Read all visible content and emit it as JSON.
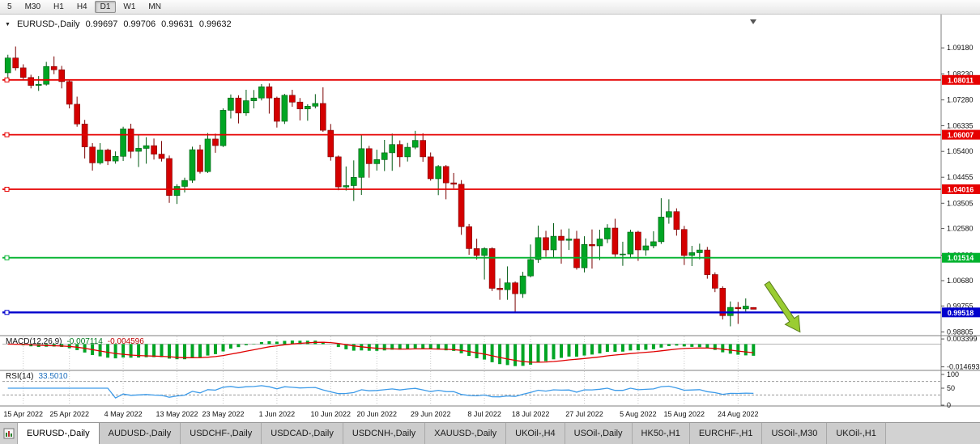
{
  "toolbar": {
    "buttons": [
      {
        "label": "5",
        "selected": false
      },
      {
        "label": "M30",
        "selected": false
      },
      {
        "label": "H1",
        "selected": false
      },
      {
        "label": "H4",
        "selected": false
      },
      {
        "label": "D1",
        "selected": true
      },
      {
        "label": "W1",
        "selected": false
      },
      {
        "label": "MN",
        "selected": false
      }
    ]
  },
  "header": {
    "symbol": "EURUSD-,Daily",
    "open": "0.99697",
    "high": "0.99706",
    "low": "0.99631",
    "close": "0.99632"
  },
  "indicators": {
    "macd": {
      "label": "MACD(12,26,9)",
      "value_main": "-0.007114",
      "value_signal": "-0.004596",
      "axis": [
        {
          "value": 0.003399,
          "label": "0.003399"
        },
        {
          "value": -0.014693,
          "label": "-0.014693"
        }
      ],
      "histogram_color": "#00a524",
      "signal_color": "#e00000"
    },
    "rsi": {
      "label": "RSI(14)",
      "value": "33.5010",
      "line_color": "#3d9be9",
      "axis": [
        {
          "value": 100,
          "label": "100"
        },
        {
          "value": 50,
          "label": "50"
        },
        {
          "value": 0,
          "label": "0"
        }
      ],
      "levels": [
        70,
        30
      ]
    }
  },
  "price_axis": {
    "ticks": [
      {
        "value": 1.0918,
        "label": "1.09180"
      },
      {
        "value": 1.0823,
        "label": "1.08230"
      },
      {
        "value": 1.0728,
        "label": "1.07280"
      },
      {
        "value": 1.06335,
        "label": "1.06335"
      },
      {
        "value": 1.054,
        "label": "1.05400"
      },
      {
        "value": 1.04455,
        "label": "1.04455"
      },
      {
        "value": 1.03505,
        "label": "1.03505"
      },
      {
        "value": 1.0258,
        "label": "1.02580"
      },
      {
        "value": 1.0161,
        "label": "1.01610"
      },
      {
        "value": 1.0068,
        "label": "1.00680"
      },
      {
        "value": 0.99755,
        "label": "0.99755"
      },
      {
        "value": 0.98805,
        "label": "0.98805"
      }
    ]
  },
  "sr_lines": [
    {
      "value": 1.08011,
      "label": "1.08011",
      "color": "#e60000",
      "width": 1.8
    },
    {
      "value": 1.06007,
      "label": "1.06007",
      "color": "#e60000",
      "width": 1.8
    },
    {
      "value": 1.04016,
      "label": "1.04016",
      "color": "#e60000",
      "width": 1.8
    },
    {
      "value": 1.01514,
      "label": "1.01514",
      "color": "#00b22d",
      "width": 1.8
    },
    {
      "value": 0.99518,
      "label": "0.99518",
      "color": "#0000cd",
      "width": 2.4
    }
  ],
  "chart_data": {
    "type": "candlestick",
    "title": "EURUSD-,Daily",
    "symbol": "EURUSD",
    "timeframe": "Daily",
    "ylim": [
      0.987,
      1.0957
    ],
    "up_color": "#00a524",
    "up_border": "#005a12",
    "down_color": "#d40000",
    "down_border": "#7a0000",
    "x_ticks": [
      {
        "i": 2,
        "label": "15 Apr 2022"
      },
      {
        "i": 8,
        "label": "25 Apr 2022"
      },
      {
        "i": 15,
        "label": "4 May 2022"
      },
      {
        "i": 22,
        "label": "13 May 2022"
      },
      {
        "i": 28,
        "label": "23 May 2022"
      },
      {
        "i": 35,
        "label": "1 Jun 2022"
      },
      {
        "i": 42,
        "label": "10 Jun 2022"
      },
      {
        "i": 48,
        "label": "20 Jun 2022"
      },
      {
        "i": 55,
        "label": "29 Jun 2022"
      },
      {
        "i": 62,
        "label": "8 Jul 2022"
      },
      {
        "i": 68,
        "label": "18 Jul 2022"
      },
      {
        "i": 75,
        "label": "27 Jul 2022"
      },
      {
        "i": 82,
        "label": "5 Aug 2022"
      },
      {
        "i": 88,
        "label": "15 Aug 2022"
      },
      {
        "i": 95,
        "label": "24 Aug 2022"
      }
    ],
    "candles": [
      [
        1.0827,
        1.0893,
        1.0808,
        1.0881
      ],
      [
        1.0881,
        1.0923,
        1.0835,
        1.0845
      ],
      [
        1.0845,
        1.0858,
        1.0802,
        1.081
      ],
      [
        1.081,
        1.082,
        1.077,
        1.0781
      ],
      [
        1.0781,
        1.0815,
        1.0761,
        1.0785
      ],
      [
        1.0785,
        1.0867,
        1.078,
        1.085
      ],
      [
        1.085,
        1.0887,
        1.0822,
        1.0838
      ],
      [
        1.0838,
        1.0852,
        1.077,
        1.0795
      ],
      [
        1.0795,
        1.08,
        1.0697,
        1.0712
      ],
      [
        1.0712,
        1.074,
        1.063,
        1.064
      ],
      [
        1.064,
        1.0655,
        1.0514,
        1.0556
      ],
      [
        1.0556,
        1.057,
        1.047,
        1.0498
      ],
      [
        1.0498,
        1.057,
        1.0492,
        1.0545
      ],
      [
        1.0545,
        1.055,
        1.049,
        1.0505
      ],
      [
        1.0505,
        1.054,
        1.0495,
        1.0522
      ],
      [
        1.0522,
        1.063,
        1.0505,
        1.0622
      ],
      [
        1.0622,
        1.0641,
        1.0515,
        1.054
      ],
      [
        1.054,
        1.0599,
        1.0483,
        1.0551
      ],
      [
        1.0551,
        1.0592,
        1.0495,
        1.0561
      ],
      [
        1.0561,
        1.0587,
        1.051,
        1.053
      ],
      [
        1.053,
        1.0578,
        1.0503,
        1.0514
      ],
      [
        1.0514,
        1.0525,
        1.0352,
        1.0379
      ],
      [
        1.0379,
        1.042,
        1.0348,
        1.0412
      ],
      [
        1.0412,
        1.0444,
        1.039,
        1.0434
      ],
      [
        1.0434,
        1.0557,
        1.0425,
        1.0546
      ],
      [
        1.0546,
        1.0564,
        1.0459,
        1.0466
      ],
      [
        1.0466,
        1.0607,
        1.0461,
        1.0585
      ],
      [
        1.0585,
        1.0605,
        1.0535,
        1.0561
      ],
      [
        1.0561,
        1.0697,
        1.0556,
        1.069
      ],
      [
        1.069,
        1.0748,
        1.066,
        1.0735
      ],
      [
        1.0735,
        1.0745,
        1.0642,
        1.068
      ],
      [
        1.068,
        1.0765,
        1.067,
        1.0725
      ],
      [
        1.0725,
        1.0764,
        1.0697,
        1.0735
      ],
      [
        1.0735,
        1.0786,
        1.0726,
        1.0776
      ],
      [
        1.0776,
        1.0788,
        1.0678,
        1.0735
      ],
      [
        1.0735,
        1.074,
        1.0627,
        1.065
      ],
      [
        1.065,
        1.075,
        1.064,
        1.0745
      ],
      [
        1.0745,
        1.0765,
        1.0703,
        1.072
      ],
      [
        1.072,
        1.0735,
        1.0653,
        1.0695
      ],
      [
        1.0695,
        1.0712,
        1.0652,
        1.0705
      ],
      [
        1.0705,
        1.0749,
        1.0697,
        1.0715
      ],
      [
        1.0715,
        1.0774,
        1.0611,
        1.0617
      ],
      [
        1.0617,
        1.064,
        1.0506,
        1.052
      ],
      [
        1.052,
        1.0525,
        1.0398,
        1.041
      ],
      [
        1.041,
        1.0485,
        1.0397,
        1.0415
      ],
      [
        1.0415,
        1.0507,
        1.0359,
        1.0445
      ],
      [
        1.0445,
        1.0601,
        1.0381,
        1.055
      ],
      [
        1.055,
        1.056,
        1.0444,
        1.0495
      ],
      [
        1.0495,
        1.0546,
        1.047,
        1.051
      ],
      [
        1.051,
        1.0582,
        1.0468,
        1.0535
      ],
      [
        1.0535,
        1.0605,
        1.0469,
        1.0565
      ],
      [
        1.0565,
        1.058,
        1.0483,
        1.052
      ],
      [
        1.052,
        1.0571,
        1.0503,
        1.0555
      ],
      [
        1.0555,
        1.0615,
        1.0548,
        1.058
      ],
      [
        1.058,
        1.0606,
        1.0502,
        1.052
      ],
      [
        1.052,
        1.0536,
        1.0433,
        1.044
      ],
      [
        1.044,
        1.049,
        1.038,
        1.0485
      ],
      [
        1.0485,
        1.049,
        1.0365,
        1.0425
      ],
      [
        1.0425,
        1.0461,
        1.0405,
        1.042
      ],
      [
        1.042,
        1.0435,
        1.0235,
        1.0265
      ],
      [
        1.0265,
        1.0275,
        1.0162,
        1.0185
      ],
      [
        1.0185,
        1.0221,
        1.0145,
        1.016
      ],
      [
        1.016,
        1.019,
        1.0072,
        1.0185
      ],
      [
        1.0185,
        1.019,
        1.003,
        1.004
      ],
      [
        1.004,
        1.0076,
        0.9998,
        1.0035
      ],
      [
        1.0035,
        1.012,
        0.9998,
        1.006
      ],
      [
        1.006,
        1.0065,
        0.9952,
        1.002
      ],
      [
        1.002,
        1.01,
        1.0005,
        1.0085
      ],
      [
        1.0085,
        1.02,
        1.008,
        1.0145
      ],
      [
        1.0145,
        1.0269,
        1.0133,
        1.0225
      ],
      [
        1.0225,
        1.025,
        1.0155,
        1.018
      ],
      [
        1.018,
        1.0278,
        1.0152,
        1.023
      ],
      [
        1.023,
        1.0255,
        1.013,
        1.0215
      ],
      [
        1.0215,
        1.0258,
        1.018,
        1.022
      ],
      [
        1.022,
        1.025,
        1.0108,
        1.0115
      ],
      [
        1.0115,
        1.023,
        1.0098,
        1.02
      ],
      [
        1.02,
        1.0255,
        1.0112,
        1.0195
      ],
      [
        1.0195,
        1.0254,
        1.0143,
        1.022
      ],
      [
        1.022,
        1.0274,
        1.0205,
        1.026
      ],
      [
        1.026,
        1.0294,
        1.0155,
        1.0165
      ],
      [
        1.0165,
        1.021,
        1.0122,
        1.0165
      ],
      [
        1.0165,
        1.0254,
        1.0153,
        1.0245
      ],
      [
        1.0245,
        1.025,
        1.014,
        1.018
      ],
      [
        1.018,
        1.0222,
        1.0159,
        1.0195
      ],
      [
        1.0195,
        1.0248,
        1.0186,
        1.021
      ],
      [
        1.021,
        1.0369,
        1.0202,
        1.03
      ],
      [
        1.03,
        1.0365,
        1.0276,
        1.032
      ],
      [
        1.032,
        1.0332,
        1.0232,
        1.0255
      ],
      [
        1.0255,
        1.0268,
        1.0125,
        1.016
      ],
      [
        1.016,
        1.0195,
        1.0121,
        1.017
      ],
      [
        1.017,
        1.0203,
        1.0146,
        1.018
      ],
      [
        1.018,
        1.0191,
        1.0075,
        1.009
      ],
      [
        1.009,
        1.0098,
        1.0026,
        1.004
      ],
      [
        1.004,
        1.0047,
        0.9926,
        0.994
      ],
      [
        0.994,
        0.9992,
        0.9901,
        0.997
      ],
      [
        0.997,
        0.999,
        0.991,
        0.9965
      ],
      [
        0.9965,
        1.0003,
        0.9955,
        0.9975
      ],
      [
        0.99697,
        0.99706,
        0.99631,
        0.99632
      ]
    ],
    "annotations": [
      {
        "type": "arrow",
        "direction": "down-right",
        "color": "#9acd32",
        "outline": "#5a7d1e"
      }
    ]
  },
  "tabs": {
    "items": [
      {
        "label": "EURUSD-,Daily",
        "active": true
      },
      {
        "label": "AUDUSD-,Daily",
        "active": false
      },
      {
        "label": "USDCHF-,Daily",
        "active": false
      },
      {
        "label": "USDCAD-,Daily",
        "active": false
      },
      {
        "label": "USDCNH-,Daily",
        "active": false
      },
      {
        "label": "XAUUSD-,Daily",
        "active": false
      },
      {
        "label": "UKOil-,H4",
        "active": false
      },
      {
        "label": "USOil-,Daily",
        "active": false
      },
      {
        "label": "HK50-,H1",
        "active": false
      },
      {
        "label": "EURCHF-,H1",
        "active": false
      },
      {
        "label": "USOil-,M30",
        "active": false
      },
      {
        "label": "UKOil-,H1",
        "active": false
      }
    ]
  }
}
